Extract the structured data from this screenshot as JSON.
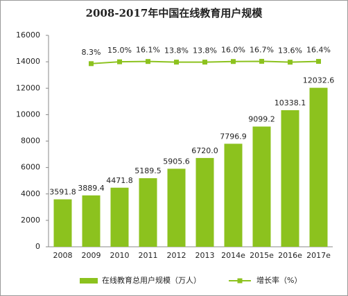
{
  "chart_data": {
    "type": "bar",
    "title": "2008-2017年中国在线教育用户规模",
    "categories": [
      "2008",
      "2009",
      "2010",
      "2011",
      "2012",
      "2013",
      "2014e",
      "2015e",
      "2016e",
      "2017e"
    ],
    "series": [
      {
        "name": "在线教育总用户规模（万人）",
        "type": "bar",
        "color": "#8cc21e",
        "values": [
          3591.8,
          3889.4,
          4471.8,
          5189.5,
          5905.6,
          6720.0,
          7796.9,
          9099.2,
          10338.1,
          12032.6
        ],
        "value_labels": [
          "3591.8",
          "3889.4",
          "4471.8",
          "5189.5",
          "5905.6",
          "6720.0",
          "7796.9",
          "9099.2",
          "10338.1",
          "12032.6"
        ]
      },
      {
        "name": "增长率（%）",
        "type": "line",
        "axis": "y2",
        "color": "#8cc21e",
        "values": [
          null,
          8.3,
          15.0,
          16.1,
          13.8,
          13.8,
          16.0,
          16.7,
          13.6,
          16.4
        ],
        "value_labels": [
          null,
          "8.3%",
          "15.0%",
          "16.1%",
          "13.8%",
          "13.8%",
          "16.0%",
          "16.7%",
          "13.6%",
          "16.4%"
        ]
      }
    ],
    "ylim": [
      0,
      16000
    ],
    "yticks": [
      0,
      2000,
      4000,
      6000,
      8000,
      10000,
      12000,
      14000,
      16000
    ],
    "y2lim": [
      -650,
      110
    ],
    "legend": "bottom"
  }
}
